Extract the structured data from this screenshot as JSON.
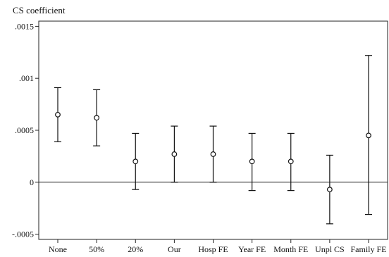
{
  "chart_data": {
    "type": "scatter",
    "title": "CS coefficient",
    "xlabel": "",
    "ylabel": "",
    "ylim": [
      -0.00055,
      0.00155
    ],
    "yticks": [
      -0.0005,
      0,
      0.0005,
      0.001,
      0.0015
    ],
    "ytick_labels": [
      "-.0005",
      "0",
      ".0005",
      ".001",
      ".0015"
    ],
    "reference_line_y": 0,
    "grid": false,
    "legend": "none",
    "categories": [
      "None",
      "50%",
      "20%",
      "Our",
      "Hosp FE",
      "Year FE",
      "Month FE",
      "Unpl CS",
      "Family FE"
    ],
    "series": [
      {
        "point_estimates": [
          0.00065,
          0.00062,
          0.0002,
          0.00027,
          0.00027,
          0.0002,
          0.0002,
          -7e-05,
          0.00045
        ],
        "ci_lower": [
          0.00039,
          0.00035,
          -7e-05,
          0.0,
          0.0,
          -8e-05,
          -8e-05,
          -0.0004,
          -0.00031
        ],
        "ci_upper": [
          0.00091,
          0.00089,
          0.00047,
          0.00054,
          0.00054,
          0.00047,
          0.00047,
          0.00026,
          0.00122
        ]
      }
    ],
    "colors": {
      "marks": "#111111",
      "background": "#ffffff"
    }
  }
}
